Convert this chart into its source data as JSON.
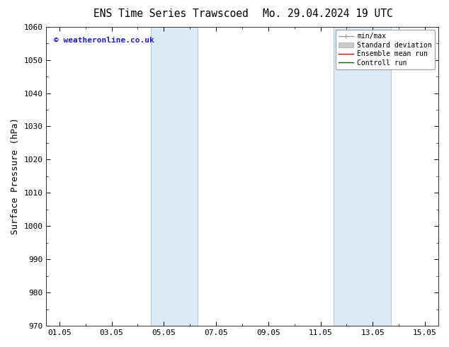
{
  "title_left": "ENS Time Series Trawscoed",
  "title_right": "Mo. 29.04.2024 19 UTC",
  "ylabel": "Surface Pressure (hPa)",
  "ylim": [
    970,
    1060
  ],
  "yticks": [
    970,
    980,
    990,
    1000,
    1010,
    1020,
    1030,
    1040,
    1050,
    1060
  ],
  "xtick_labels": [
    "01.05",
    "03.05",
    "05.05",
    "07.05",
    "09.05",
    "11.05",
    "13.05",
    "15.05"
  ],
  "xtick_positions": [
    0,
    2,
    4,
    6,
    8,
    10,
    12,
    14
  ],
  "xlim": [
    -0.5,
    14.5
  ],
  "copyright_text": "© weatheronline.co.uk",
  "blue_bands": [
    {
      "x_start": 3.5,
      "x_end": 5.3
    },
    {
      "x_start": 10.5,
      "x_end": 12.7
    }
  ],
  "blue_band_color": "#daeaf7",
  "blue_band_edge_color": "#aaccdd",
  "background_color": "#ffffff",
  "legend_items": [
    {
      "label": "min/max",
      "color": "#999999",
      "lw": 1.0
    },
    {
      "label": "Standard deviation",
      "color": "#cccccc",
      "lw": 6
    },
    {
      "label": "Ensemble mean run",
      "color": "#cc0000",
      "lw": 1.0
    },
    {
      "label": "Controll run",
      "color": "#006600",
      "lw": 1.0
    }
  ],
  "title_fontsize": 10.5,
  "tick_fontsize": 8,
  "ylabel_fontsize": 9,
  "copyright_fontsize": 8,
  "copyright_color": "#1a1aee"
}
